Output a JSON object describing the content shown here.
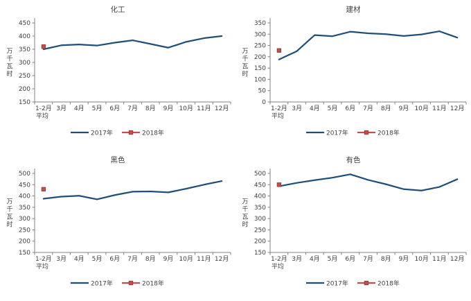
{
  "axis": {
    "x_labels": [
      "1-2月",
      "3月",
      "4月",
      "5月",
      "6月",
      "7月",
      "8月",
      "9月",
      "10月",
      "11月",
      "12月"
    ],
    "x_first_sublabel": "平均",
    "y_unit_label": "万千瓦时",
    "y_unit_chars": [
      "万",
      "千",
      "瓦",
      "时"
    ]
  },
  "legend": {
    "position": "bottom",
    "items": [
      {
        "label": "2017年"
      },
      {
        "label": "2018年"
      }
    ]
  },
  "style": {
    "series_styles": [
      {
        "name": "2017年",
        "color": "#1F4E79",
        "type": "line"
      },
      {
        "name": "2018年",
        "color": "#C0504D",
        "type": "line-marker",
        "marker_border": "#943634"
      }
    ],
    "axis_color": "#808080",
    "text_color": "#3F3F3F",
    "background": "#FFFFFF"
  },
  "chart_data": [
    {
      "type": "line",
      "title": "化工",
      "ylabel": "万千瓦时",
      "xlabel": "",
      "categories": [
        "1-2月平均",
        "3月",
        "4月",
        "5月",
        "6月",
        "7月",
        "8月",
        "9月",
        "10月",
        "11月",
        "12月"
      ],
      "ylim": [
        150,
        450
      ],
      "ytick_step": 50,
      "grid": false,
      "legend_position": "bottom",
      "series": [
        {
          "name": "2017年",
          "values": [
            350,
            365,
            368,
            364,
            375,
            384,
            370,
            356,
            378,
            392,
            400
          ]
        },
        {
          "name": "2018年",
          "values": [
            360,
            null,
            null,
            null,
            null,
            null,
            null,
            null,
            null,
            null,
            null
          ]
        }
      ]
    },
    {
      "type": "line",
      "title": "建材",
      "ylabel": "万千瓦时",
      "xlabel": "",
      "categories": [
        "1-2月平均",
        "3月",
        "4月",
        "5月",
        "6月",
        "7月",
        "8月",
        "9月",
        "10月",
        "11月",
        "12月"
      ],
      "ylim": [
        0,
        350
      ],
      "ytick_step": 50,
      "grid": false,
      "legend_position": "bottom",
      "series": [
        {
          "name": "2017年",
          "values": [
            188,
            225,
            296,
            291,
            311,
            304,
            300,
            292,
            299,
            313,
            285
          ]
        },
        {
          "name": "2018年",
          "values": [
            228,
            null,
            null,
            null,
            null,
            null,
            null,
            null,
            null,
            null,
            null
          ]
        }
      ]
    },
    {
      "type": "line",
      "title": "黑色",
      "ylabel": "万千瓦时",
      "xlabel": "",
      "categories": [
        "1-2月平均",
        "3月",
        "4月",
        "5月",
        "6月",
        "7月",
        "8月",
        "9月",
        "10月",
        "11月",
        "12月"
      ],
      "ylim": [
        150,
        500
      ],
      "ytick_step": 50,
      "grid": false,
      "legend_position": "bottom",
      "series": [
        {
          "name": "2017年",
          "values": [
            388,
            397,
            401,
            385,
            404,
            419,
            420,
            416,
            432,
            450,
            466
          ]
        },
        {
          "name": "2018年",
          "values": [
            430,
            null,
            null,
            null,
            null,
            null,
            null,
            null,
            null,
            null,
            null
          ]
        }
      ]
    },
    {
      "type": "line",
      "title": "有色",
      "ylabel": "万千瓦时",
      "xlabel": "",
      "categories": [
        "1-2月平均",
        "3月",
        "4月",
        "5月",
        "6月",
        "7月",
        "8月",
        "9月",
        "10月",
        "11月",
        "12月"
      ],
      "ylim": [
        150,
        500
      ],
      "ytick_step": 50,
      "grid": false,
      "legend_position": "bottom",
      "series": [
        {
          "name": "2017年",
          "values": [
            443,
            458,
            470,
            481,
            496,
            471,
            452,
            430,
            424,
            440,
            474
          ]
        },
        {
          "name": "2018年",
          "values": [
            450,
            null,
            null,
            null,
            null,
            null,
            null,
            null,
            null,
            null,
            null
          ]
        }
      ]
    }
  ]
}
